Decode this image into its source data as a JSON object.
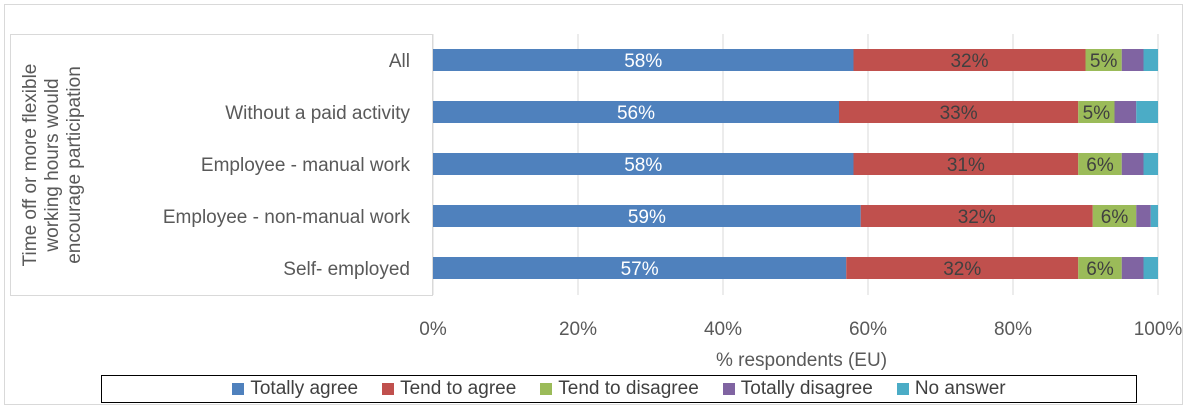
{
  "chart_data": {
    "type": "bar",
    "orientation": "horizontal",
    "stacked": true,
    "group_label": "Time off or more flexible working hours would encourage participation",
    "group_label_lines": [
      "Time off or more flexible",
      "working hours would",
      "encourage participation"
    ],
    "categories": [
      "All",
      "Without a paid activity",
      "Employee - manual work",
      "Employee - non-manual work",
      "Self- employed"
    ],
    "series": [
      {
        "name": "Totally agree",
        "color": "#4F81BD",
        "values": [
          58,
          56,
          58,
          59,
          57
        ],
        "labels": [
          "58%",
          "56%",
          "58%",
          "59%",
          "57%"
        ]
      },
      {
        "name": "Tend to agree",
        "color": "#C0504D",
        "values": [
          32,
          33,
          31,
          32,
          32
        ],
        "labels": [
          "32%",
          "33%",
          "31%",
          "32%",
          "32%"
        ]
      },
      {
        "name": "Tend to disagree",
        "color": "#9BBB59",
        "values": [
          5,
          5,
          6,
          6,
          6
        ],
        "labels": [
          "5%",
          "5%",
          "6%",
          "6%",
          "6%"
        ]
      },
      {
        "name": "Totally disagree",
        "color": "#8064A2",
        "values": [
          3,
          3,
          3,
          2,
          3
        ]
      },
      {
        "name": "No answer",
        "color": "#4BACC6",
        "values": [
          2,
          3,
          2,
          1,
          2
        ]
      }
    ],
    "xlabel": "% respondents (EU)",
    "xlim": [
      0,
      100
    ],
    "x_ticks": [
      "0%",
      "20%",
      "40%",
      "60%",
      "80%",
      "100%"
    ],
    "grid": true,
    "legend_position": "bottom"
  }
}
